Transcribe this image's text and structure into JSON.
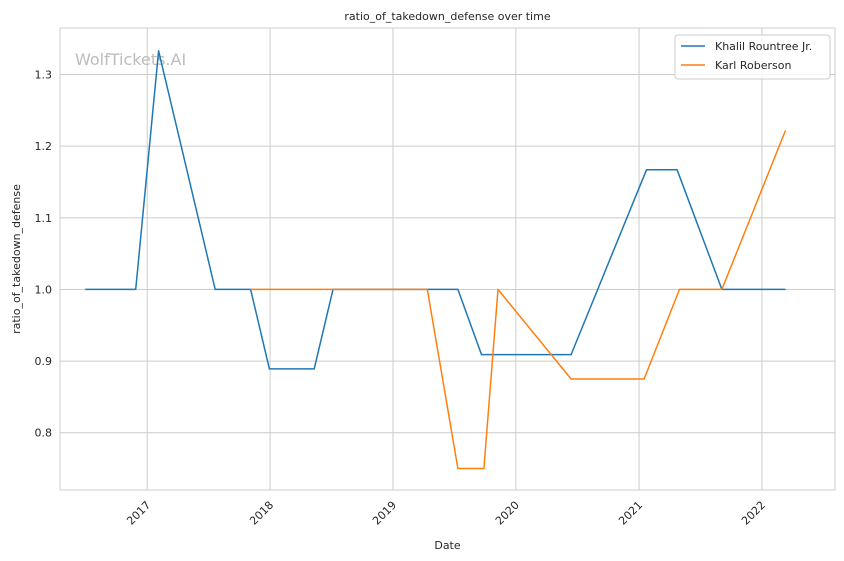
{
  "chart_data": {
    "type": "line",
    "title": "ratio_of_takedown_defense over time",
    "xlabel": "Date",
    "ylabel": "ratio_of_takedown_defense",
    "watermark": "WolfTickets.AI",
    "x_range": [
      "2016-04-17",
      "2022-08-06"
    ],
    "ylim": [
      0.72,
      1.365
    ],
    "x_ticks": [
      {
        "date": "2017-01-01",
        "label": "2017"
      },
      {
        "date": "2018-01-01",
        "label": "2018"
      },
      {
        "date": "2019-01-01",
        "label": "2019"
      },
      {
        "date": "2020-01-01",
        "label": "2020"
      },
      {
        "date": "2021-01-01",
        "label": "2021"
      },
      {
        "date": "2022-01-01",
        "label": "2022"
      }
    ],
    "y_ticks": [
      {
        "value": 0.8,
        "label": "0.8"
      },
      {
        "value": 0.9,
        "label": "0.9"
      },
      {
        "value": 1.0,
        "label": "1.0"
      },
      {
        "value": 1.1,
        "label": "1.1"
      },
      {
        "value": 1.2,
        "label": "1.2"
      },
      {
        "value": 1.3,
        "label": "1.3"
      }
    ],
    "grid": true,
    "legend_position": "top-right",
    "series": [
      {
        "name": "Khalil Rountree Jr.",
        "color": "#1f77b4",
        "points": [
          {
            "x": "2016-07-01",
            "y": 1.0
          },
          {
            "x": "2016-11-28",
            "y": 1.0
          },
          {
            "x": "2017-02-04",
            "y": 1.333
          },
          {
            "x": "2017-07-22",
            "y": 1.0
          },
          {
            "x": "2017-11-04",
            "y": 1.0
          },
          {
            "x": "2017-12-30",
            "y": 0.889
          },
          {
            "x": "2018-05-12",
            "y": 0.889
          },
          {
            "x": "2018-07-07",
            "y": 1.0
          },
          {
            "x": "2019-07-13",
            "y": 1.0
          },
          {
            "x": "2019-09-21",
            "y": 0.909
          },
          {
            "x": "2020-06-13",
            "y": 0.909
          },
          {
            "x": "2021-01-23",
            "y": 1.167
          },
          {
            "x": "2021-04-24",
            "y": 1.167
          },
          {
            "x": "2021-09-04",
            "y": 1.0
          },
          {
            "x": "2022-03-12",
            "y": 1.0
          }
        ]
      },
      {
        "name": "Karl Roberson",
        "color": "#ff7f0e",
        "points": [
          {
            "x": "2017-11-04",
            "y": 1.0
          },
          {
            "x": "2019-04-13",
            "y": 1.0
          },
          {
            "x": "2019-07-13",
            "y": 0.75
          },
          {
            "x": "2019-09-28",
            "y": 0.75
          },
          {
            "x": "2019-11-09",
            "y": 1.0
          },
          {
            "x": "2020-06-13",
            "y": 0.875
          },
          {
            "x": "2021-01-16",
            "y": 0.875
          },
          {
            "x": "2021-05-01",
            "y": 1.0
          },
          {
            "x": "2021-09-04",
            "y": 1.0
          },
          {
            "x": "2022-03-12",
            "y": 1.222
          }
        ]
      }
    ]
  }
}
